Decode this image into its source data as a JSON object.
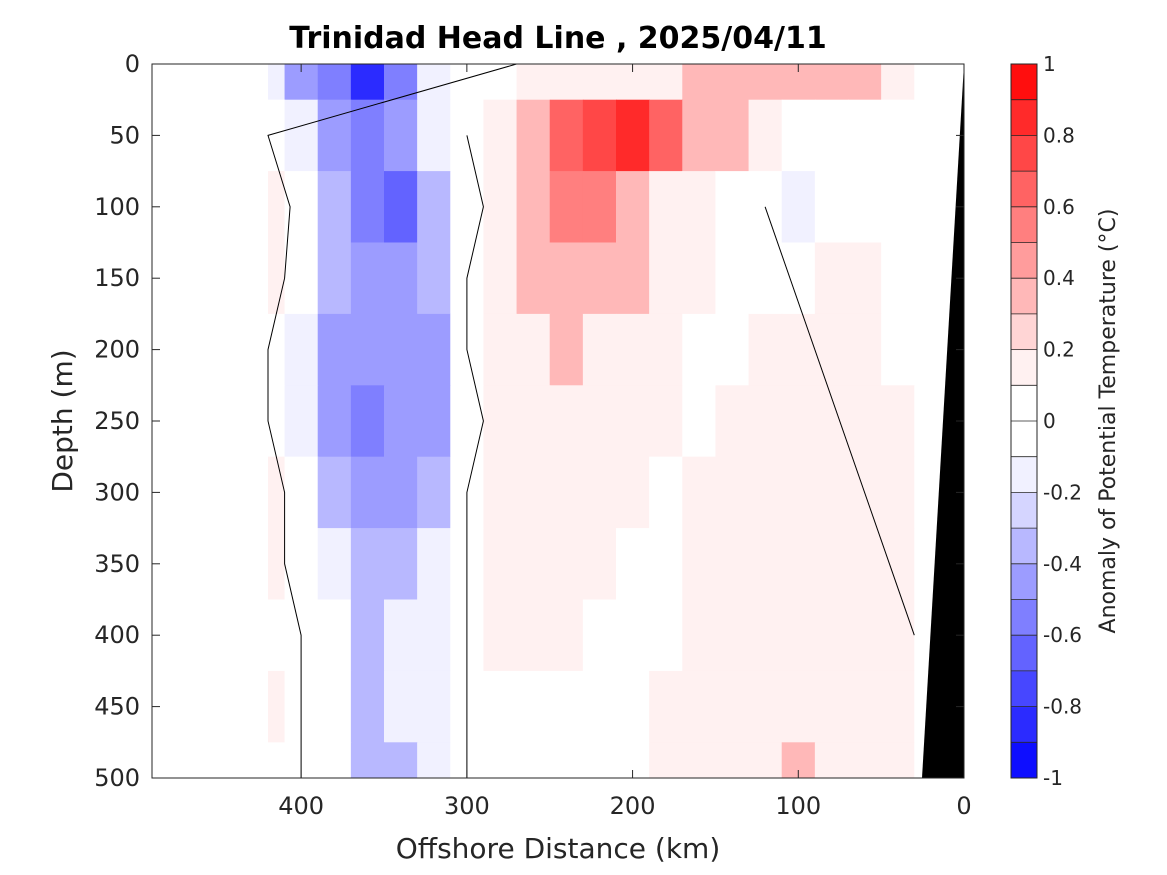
{
  "chart_data": {
    "type": "heatmap",
    "title": "Trinidad Head Line , 2025/04/11",
    "xlabel": "Offshore Distance (km)",
    "ylabel": "Depth (m)",
    "xlim": [
      490,
      0
    ],
    "ylim": [
      0,
      500
    ],
    "x_reversed": true,
    "y_reversed": true,
    "xticks": [
      "400",
      "300",
      "200",
      "100",
      "0"
    ],
    "xtick_values": [
      400,
      300,
      200,
      100,
      0
    ],
    "yticks": [
      "0",
      "50",
      "100",
      "150",
      "200",
      "250",
      "300",
      "350",
      "400",
      "450",
      "500"
    ],
    "ytick_values": [
      0,
      50,
      100,
      150,
      200,
      250,
      300,
      350,
      400,
      450,
      500
    ],
    "colorbar": {
      "label": "Anomaly of Potential Temperature (°C)",
      "range": [
        -1,
        1
      ],
      "levels": 20,
      "ticks": [
        "1",
        "0.8",
        "0.6",
        "0.4",
        "0.2",
        "0",
        "-0.2",
        "-0.4",
        "-0.6",
        "-0.8",
        "-1"
      ],
      "tick_values": [
        1,
        0.8,
        0.6,
        0.4,
        0.2,
        0,
        -0.2,
        -0.4,
        -0.6,
        -0.8,
        -1
      ],
      "cold_color": "#0000ff",
      "warm_color": "#ff0000",
      "neutral_color": "#ffffff"
    },
    "data_extent_km": [
      420,
      20
    ],
    "distance_km": [
      420,
      400,
      380,
      360,
      340,
      320,
      300,
      280,
      260,
      240,
      220,
      200,
      180,
      160,
      140,
      120,
      100,
      80,
      60,
      40,
      20
    ],
    "depth_m": [
      0,
      50,
      100,
      150,
      200,
      250,
      300,
      350,
      400,
      450,
      500
    ],
    "anomaly_by_depth": [
      [
        -0.2,
        -0.4,
        -0.6,
        -0.8,
        -0.6,
        -0.2,
        -0.1,
        -0.1,
        0.1,
        0.1,
        0.2,
        0.2,
        0.2,
        0.3,
        0.3,
        0.3,
        0.4,
        0.4,
        0.3,
        0.2,
        0.0
      ],
      [
        0.0,
        -0.2,
        -0.4,
        -0.6,
        -0.5,
        -0.2,
        0.0,
        0.2,
        0.4,
        0.6,
        0.7,
        0.8,
        0.6,
        0.4,
        0.3,
        0.1,
        0.0,
        0.0,
        0.0,
        0.0,
        0.0
      ],
      [
        0.2,
        -0.1,
        -0.3,
        -0.6,
        -0.7,
        -0.3,
        -0.1,
        0.1,
        0.3,
        0.5,
        0.5,
        0.3,
        0.2,
        0.1,
        0.0,
        0.0,
        -0.2,
        -0.1,
        0.0,
        0.0,
        0.0
      ],
      [
        0.1,
        -0.1,
        -0.3,
        -0.4,
        -0.5,
        -0.3,
        0.0,
        0.2,
        0.3,
        0.4,
        0.4,
        0.3,
        0.2,
        0.1,
        0.0,
        0.0,
        0.0,
        0.1,
        0.1,
        0.0,
        0.0
      ],
      [
        0.0,
        -0.2,
        -0.4,
        -0.5,
        -0.5,
        -0.4,
        0.0,
        0.1,
        0.2,
        0.3,
        0.2,
        0.2,
        0.1,
        0.0,
        0.0,
        0.1,
        0.1,
        0.2,
        0.1,
        0.0,
        0.0
      ],
      [
        0.0,
        -0.2,
        -0.4,
        -0.6,
        -0.5,
        -0.4,
        -0.1,
        0.1,
        0.1,
        0.2,
        0.2,
        0.1,
        0.1,
        0.0,
        0.1,
        0.1,
        0.2,
        0.2,
        0.2,
        0.1,
        0.0
      ],
      [
        0.1,
        -0.1,
        -0.3,
        -0.4,
        -0.4,
        -0.3,
        0.0,
        0.1,
        0.1,
        0.1,
        0.1,
        0.1,
        0.0,
        0.1,
        0.2,
        0.2,
        0.1,
        0.2,
        0.1,
        0.1,
        0.0
      ],
      [
        0.1,
        -0.1,
        -0.2,
        -0.3,
        -0.3,
        -0.2,
        0.0,
        0.1,
        0.1,
        0.1,
        0.1,
        0.0,
        0.0,
        0.1,
        0.2,
        0.1,
        0.1,
        0.2,
        0.2,
        0.1,
        0.0
      ],
      [
        0.0,
        0.0,
        -0.1,
        -0.3,
        -0.2,
        -0.2,
        0.0,
        0.1,
        0.1,
        0.1,
        0.0,
        0.0,
        0.0,
        0.1,
        0.1,
        0.1,
        0.1,
        0.2,
        0.1,
        0.1,
        -0.1
      ],
      [
        0.1,
        0.0,
        -0.1,
        -0.3,
        -0.2,
        -0.2,
        0.0,
        0.0,
        0.0,
        0.0,
        0.0,
        0.0,
        0.1,
        0.1,
        0.2,
        0.2,
        0.2,
        0.2,
        0.1,
        0.1,
        0.0
      ],
      [
        0.0,
        0.0,
        -0.1,
        -0.3,
        -0.3,
        -0.2,
        0.0,
        0.0,
        0.0,
        0.0,
        0.0,
        0.0,
        0.1,
        0.2,
        0.1,
        0.2,
        0.3,
        0.2,
        0.1,
        0.1,
        0.0
      ]
    ]
  }
}
